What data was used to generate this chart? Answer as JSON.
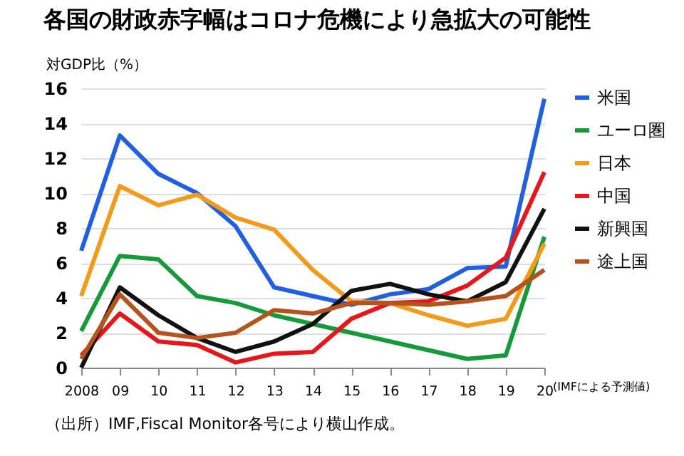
{
  "chart_data": {
    "type": "line",
    "title": "各国の財政赤字幅はコロナ危機により急拡大の可能性",
    "ylabel": "対GDP比（%）",
    "categories": [
      "2008",
      "09",
      "10",
      "11",
      "12",
      "13",
      "14",
      "15",
      "16",
      "17",
      "18",
      "19",
      "20"
    ],
    "series": [
      {
        "name": "米国",
        "color": "#1f5fe0",
        "values": [
          6.7,
          13.3,
          11.1,
          10.0,
          8.1,
          4.6,
          4.1,
          3.6,
          4.2,
          4.5,
          5.7,
          5.8,
          15.4
        ]
      },
      {
        "name": "ユーロ圏",
        "color": "#159a3a",
        "values": [
          2.1,
          6.4,
          6.2,
          4.1,
          3.7,
          3.0,
          2.5,
          2.0,
          1.5,
          1.0,
          0.5,
          0.7,
          7.5
        ]
      },
      {
        "name": "日本",
        "color": "#f39a1a",
        "values": [
          4.1,
          10.4,
          9.3,
          9.9,
          8.6,
          7.9,
          5.6,
          3.8,
          3.7,
          3.0,
          2.4,
          2.8,
          7.1
        ]
      },
      {
        "name": "中国",
        "color": "#e8151b",
        "values": [
          0.7,
          3.1,
          1.5,
          1.3,
          0.3,
          0.8,
          0.9,
          2.8,
          3.7,
          3.8,
          4.7,
          6.3,
          11.2
        ]
      },
      {
        "name": "新興国",
        "color": "#111111",
        "values": [
          0.0,
          4.6,
          3.0,
          1.7,
          0.9,
          1.5,
          2.5,
          4.4,
          4.8,
          4.2,
          3.8,
          4.9,
          9.1
        ]
      },
      {
        "name": "途上国",
        "color": "#b5531c",
        "values": [
          0.5,
          4.2,
          2.0,
          1.7,
          2.0,
          3.3,
          3.1,
          3.7,
          3.7,
          3.6,
          3.8,
          4.1,
          5.6
        ]
      }
    ],
    "ylim": [
      0,
      16
    ],
    "yticks": [
      0,
      2,
      4,
      6,
      8,
      10,
      12,
      14,
      16
    ],
    "grid": "y",
    "legend": "right",
    "marker": "none",
    "line_style": "solid",
    "annotations": [
      "(IMFによる予測値)",
      "（出所）IMF,Fiscal Monitor各号により横山作成。"
    ]
  }
}
